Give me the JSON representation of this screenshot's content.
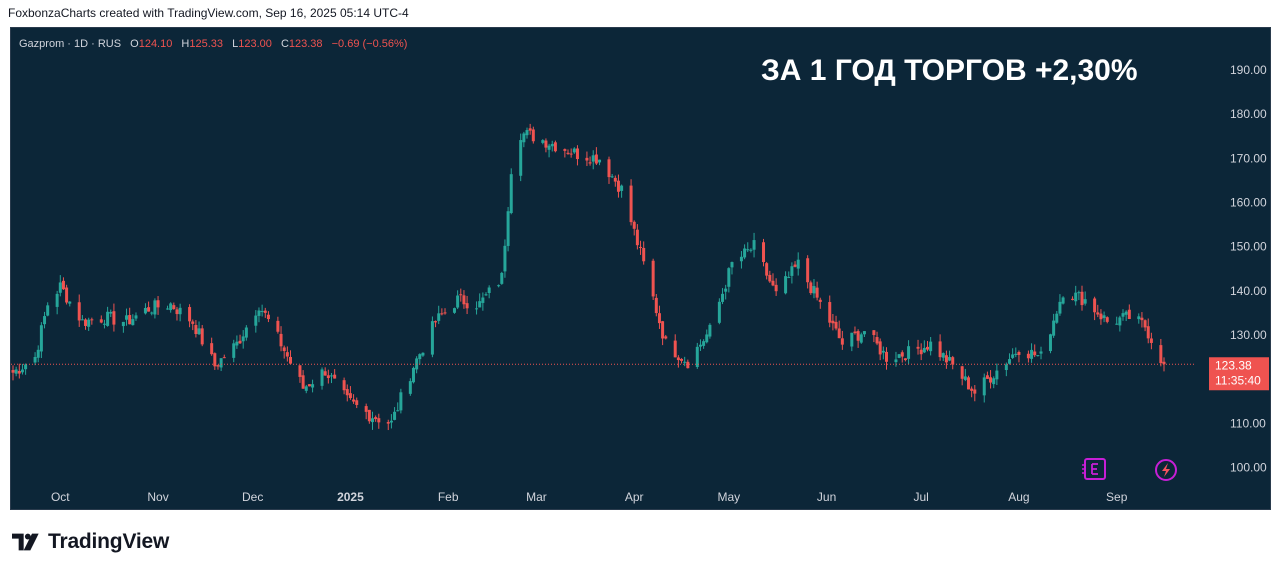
{
  "header": {
    "text": "FoxbonzaCharts created with TradingView.com, Sep 16, 2025 05:14 UTC-4"
  },
  "chart_data": {
    "type": "candlestick",
    "symbol_line": {
      "symbol": "Gazprom · 1D · RUS",
      "o_label": "O",
      "o_value": "124.10",
      "h_label": "H",
      "h_value": "125.33",
      "l_label": "L",
      "l_value": "123.00",
      "c_label": "C",
      "c_value": "123.38",
      "change": "−0.69 (−0.56%)"
    },
    "annotation": "ЗА 1 ГОД ТОРГОВ +2,30%",
    "y_ticks": [
      "190.00",
      "180.00",
      "170.00",
      "160.00",
      "150.00",
      "140.00",
      "130.00",
      "110.00",
      "100.00"
    ],
    "y_tick_values": [
      190,
      180,
      170,
      160,
      150,
      140,
      130,
      110,
      100
    ],
    "ylim": [
      96.5,
      199.5
    ],
    "x_ticks": [
      "Oct",
      "Nov",
      "Dec",
      "2025",
      "Feb",
      "Mar",
      "Apr",
      "May",
      "Jun",
      "Jul",
      "Aug",
      "Sep"
    ],
    "x_start": "2024-09-16",
    "x_end": "2025-09-16",
    "closes": [
      [
        "2024-09-16",
        121.5
      ],
      [
        "2024-09-23",
        125
      ],
      [
        "2024-09-27",
        137
      ],
      [
        "2024-10-01",
        141
      ],
      [
        "2024-10-08",
        133
      ],
      [
        "2024-10-15",
        134
      ],
      [
        "2024-10-22",
        133
      ],
      [
        "2024-10-29",
        136
      ],
      [
        "2024-11-05",
        137
      ],
      [
        "2024-11-12",
        133
      ],
      [
        "2024-11-19",
        123
      ],
      [
        "2024-11-26",
        128
      ],
      [
        "2024-12-03",
        137
      ],
      [
        "2024-12-10",
        128
      ],
      [
        "2024-12-17",
        118
      ],
      [
        "2024-12-24",
        122
      ],
      [
        "2024-12-31",
        115
      ],
      [
        "2025-01-07",
        112
      ],
      [
        "2025-01-14",
        110
      ],
      [
        "2025-01-21",
        123
      ],
      [
        "2025-01-28",
        133
      ],
      [
        "2025-02-04",
        138
      ],
      [
        "2025-02-11",
        137
      ],
      [
        "2025-02-18",
        143
      ],
      [
        "2025-02-22",
        176
      ],
      [
        "2025-02-28",
        175
      ],
      [
        "2025-03-07",
        173
      ],
      [
        "2025-03-14",
        171
      ],
      [
        "2025-03-21",
        170
      ],
      [
        "2025-03-28",
        163
      ],
      [
        "2025-04-04",
        146
      ],
      [
        "2025-04-11",
        128
      ],
      [
        "2025-04-18",
        124
      ],
      [
        "2025-04-25",
        131
      ],
      [
        "2025-05-02",
        146
      ],
      [
        "2025-05-09",
        150
      ],
      [
        "2025-05-16",
        139
      ],
      [
        "2025-05-23",
        146
      ],
      [
        "2025-05-30",
        137
      ],
      [
        "2025-06-06",
        128
      ],
      [
        "2025-06-13",
        131
      ],
      [
        "2025-06-20",
        125
      ],
      [
        "2025-06-27",
        126
      ],
      [
        "2025-07-04",
        128
      ],
      [
        "2025-07-11",
        123
      ],
      [
        "2025-07-18",
        117
      ],
      [
        "2025-07-25",
        122
      ],
      [
        "2025-08-01",
        127
      ],
      [
        "2025-08-08",
        125
      ],
      [
        "2025-08-15",
        140
      ],
      [
        "2025-08-22",
        138
      ],
      [
        "2025-08-29",
        133
      ],
      [
        "2025-09-05",
        134
      ],
      [
        "2025-09-10",
        132
      ],
      [
        "2025-09-16",
        123.38
      ]
    ],
    "last_price": "123.38",
    "countdown": "11:35:40",
    "colors": {
      "background": "#0c2638",
      "up": "#26a69a",
      "down": "#ef5350",
      "axis_text": "#d1d4dc",
      "event_icon": "#c71fd6"
    },
    "icons": [
      "earnings-icon",
      "lightning-icon"
    ]
  },
  "footer": {
    "brand": "TradingView"
  }
}
